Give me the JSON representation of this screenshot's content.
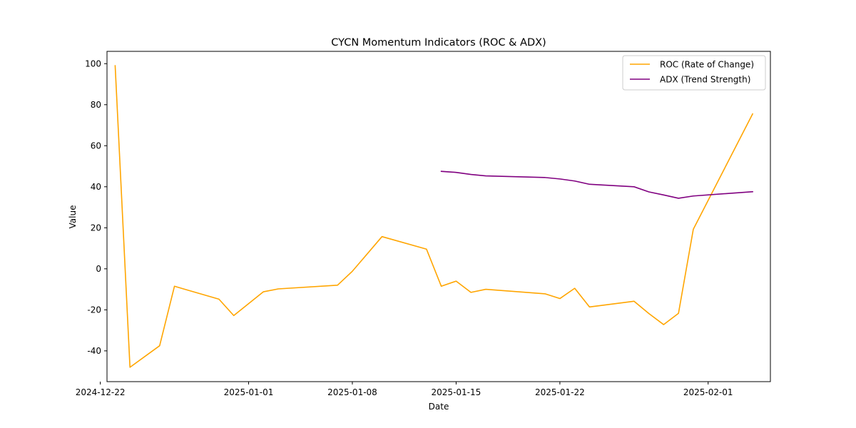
{
  "chart_data": {
    "type": "line",
    "title": "CYCN Momentum Indicators (ROC & ADX)",
    "xlabel": "Date",
    "ylabel": "Value",
    "xlim": [
      "2024-12-22",
      "2025-02-05"
    ],
    "ylim": [
      -55,
      106
    ],
    "x_ticks": [
      "2024-12-22",
      "2025-01-01",
      "2025-01-08",
      "2025-01-15",
      "2025-01-22",
      "2025-02-01"
    ],
    "y_ticks": [
      -40,
      -20,
      0,
      20,
      40,
      60,
      80,
      100
    ],
    "grid": false,
    "legend": "top-right",
    "series": [
      {
        "name": "ROC (Rate of Change)",
        "color": "#FFA500",
        "points": [
          [
            "2024-12-23",
            99
          ],
          [
            "2024-12-24",
            -48
          ],
          [
            "2024-12-26",
            -37.5
          ],
          [
            "2024-12-27",
            -8.5
          ],
          [
            "2024-12-30",
            -14.8
          ],
          [
            "2024-12-31",
            -22.8
          ],
          [
            "2025-01-02",
            -11.2
          ],
          [
            "2025-01-03",
            -9.8
          ],
          [
            "2025-01-07",
            -8
          ],
          [
            "2025-01-08",
            -1.2
          ],
          [
            "2025-01-10",
            15.7
          ],
          [
            "2025-01-13",
            9.6
          ],
          [
            "2025-01-14",
            -8.5
          ],
          [
            "2025-01-15",
            -6
          ],
          [
            "2025-01-16",
            -11.5
          ],
          [
            "2025-01-17",
            -10
          ],
          [
            "2025-01-21",
            -12.2
          ],
          [
            "2025-01-22",
            -14.5
          ],
          [
            "2025-01-23",
            -9.5
          ],
          [
            "2025-01-24",
            -18.6
          ],
          [
            "2025-01-27",
            -15.8
          ],
          [
            "2025-01-28",
            -21.8
          ],
          [
            "2025-01-29",
            -27.2
          ],
          [
            "2025-01-30",
            -21.7
          ],
          [
            "2025-01-31",
            19.3
          ],
          [
            "2025-02-04",
            75.5
          ]
        ]
      },
      {
        "name": "ADX (Trend Strength)",
        "color": "#800080",
        "points": [
          [
            "2025-01-14",
            47.5
          ],
          [
            "2025-01-15",
            47
          ],
          [
            "2025-01-16",
            46
          ],
          [
            "2025-01-17",
            45.3
          ],
          [
            "2025-01-21",
            44.5
          ],
          [
            "2025-01-22",
            43.8
          ],
          [
            "2025-01-23",
            42.8
          ],
          [
            "2025-01-24",
            41.2
          ],
          [
            "2025-01-27",
            40
          ],
          [
            "2025-01-28",
            37.5
          ],
          [
            "2025-01-29",
            36
          ],
          [
            "2025-01-30",
            34.4
          ],
          [
            "2025-01-31",
            35.5
          ],
          [
            "2025-02-04",
            37.6
          ]
        ]
      }
    ]
  }
}
